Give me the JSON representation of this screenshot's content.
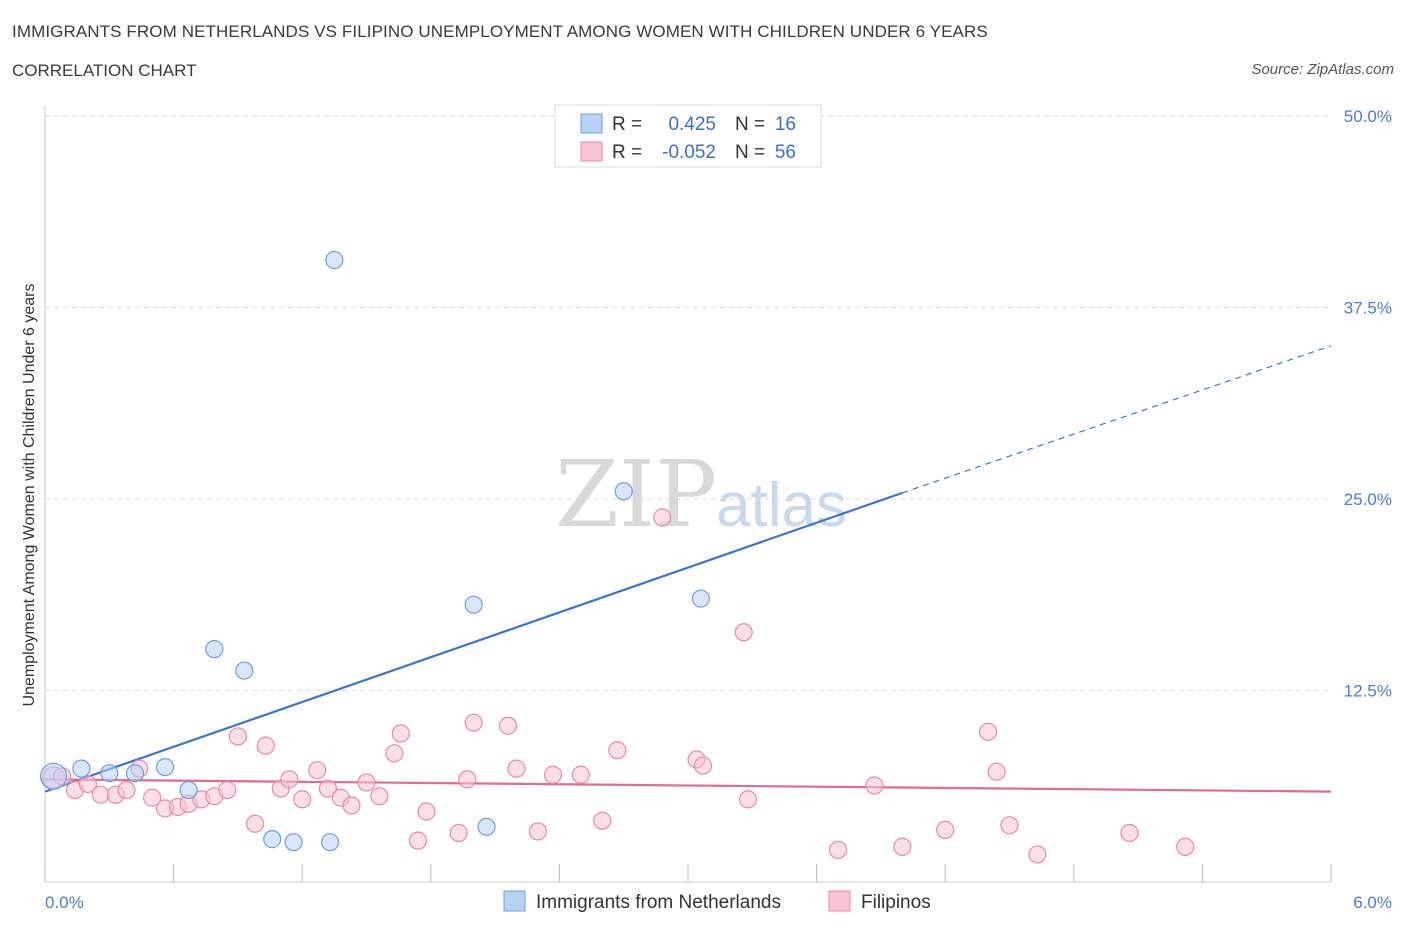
{
  "header": {
    "title": "IMMIGRANTS FROM NETHERLANDS VS FILIPINO UNEMPLOYMENT AMONG WOMEN WITH CHILDREN UNDER 6 YEARS",
    "subtitle": "CORRELATION CHART",
    "source": "Source: ZipAtlas.com"
  },
  "watermark": {
    "zip": "ZIP",
    "atlas": "atlas"
  },
  "legend": {
    "rows": [
      {
        "r_label": "R =",
        "r_value": "0.425",
        "n_label": "N =",
        "n_value": "16",
        "color": "#b8d2f5"
      },
      {
        "r_label": "R =",
        "r_value": "-0.052",
        "n_label": "N =",
        "n_value": "56",
        "color": "#f8c4d4"
      }
    ]
  },
  "bottom_legend": [
    {
      "label": "Immigrants from Netherlands",
      "color": "#b8d2f5",
      "stroke": "#6f9ee0"
    },
    {
      "label": "Filipinos",
      "color": "#f8c4d4",
      "stroke": "#e88aa8"
    }
  ],
  "chart_data": {
    "type": "scatter",
    "title": "IMMIGRANTS FROM NETHERLANDS VS FILIPINO UNEMPLOYMENT AMONG WOMEN WITH CHILDREN UNDER 6 YEARS",
    "xlabel": "",
    "ylabel": "Unemployment Among Women with Children Under 6 years",
    "xlim": [
      0,
      6
    ],
    "ylim": [
      0,
      50
    ],
    "x_tick_labels": [
      "0.0%",
      "6.0%"
    ],
    "y_ticks": [
      12.5,
      25.0,
      37.5,
      50.0
    ],
    "y_tick_labels": [
      "12.5%",
      "25.0%",
      "37.5%",
      "50.0%"
    ],
    "series": [
      {
        "name": "Immigrants from Netherlands",
        "color": "#6f9ee0",
        "fill": "#b8d2f5",
        "points": [
          [
            0.04,
            6.9
          ],
          [
            0.17,
            7.4
          ],
          [
            0.3,
            7.1
          ],
          [
            0.42,
            7.1
          ],
          [
            0.56,
            7.5
          ],
          [
            0.67,
            6.0
          ],
          [
            0.79,
            15.2
          ],
          [
            0.93,
            13.8
          ],
          [
            1.06,
            2.8
          ],
          [
            1.16,
            2.6
          ],
          [
            1.33,
            2.6
          ],
          [
            1.35,
            40.6
          ],
          [
            2.0,
            18.1
          ],
          [
            2.06,
            3.6
          ],
          [
            2.7,
            25.5
          ],
          [
            3.06,
            18.5
          ]
        ],
        "trend": {
          "x0": 0.0,
          "y0": 5.9,
          "x1": 4.0,
          "y1": 25.4,
          "dash_x1": 6.0,
          "dash_y1": 35.0
        }
      },
      {
        "name": "Filipinos",
        "color": "#e88aa8",
        "fill": "#f8c4d4",
        "points": [
          [
            0.04,
            6.8
          ],
          [
            0.08,
            6.9
          ],
          [
            0.14,
            6.0
          ],
          [
            0.2,
            6.4
          ],
          [
            0.26,
            5.7
          ],
          [
            0.33,
            5.7
          ],
          [
            0.38,
            6.0
          ],
          [
            0.44,
            7.4
          ],
          [
            0.5,
            5.5
          ],
          [
            0.56,
            4.8
          ],
          [
            0.62,
            4.9
          ],
          [
            0.67,
            5.1
          ],
          [
            0.73,
            5.4
          ],
          [
            0.79,
            5.6
          ],
          [
            0.85,
            6.0
          ],
          [
            0.9,
            9.5
          ],
          [
            0.98,
            3.8
          ],
          [
            1.03,
            8.9
          ],
          [
            1.1,
            6.1
          ],
          [
            1.14,
            6.7
          ],
          [
            1.2,
            5.4
          ],
          [
            1.27,
            7.3
          ],
          [
            1.32,
            6.1
          ],
          [
            1.38,
            5.5
          ],
          [
            1.43,
            5.0
          ],
          [
            1.5,
            6.5
          ],
          [
            1.56,
            5.6
          ],
          [
            1.63,
            8.4
          ],
          [
            1.66,
            9.7
          ],
          [
            1.74,
            2.7
          ],
          [
            1.78,
            4.6
          ],
          [
            1.93,
            3.2
          ],
          [
            1.97,
            6.7
          ],
          [
            2.0,
            10.4
          ],
          [
            2.16,
            10.2
          ],
          [
            2.2,
            7.4
          ],
          [
            2.3,
            3.3
          ],
          [
            2.37,
            7.0
          ],
          [
            2.5,
            7.0
          ],
          [
            2.6,
            4.0
          ],
          [
            2.67,
            8.6
          ],
          [
            2.88,
            23.8
          ],
          [
            3.04,
            8.0
          ],
          [
            3.07,
            7.6
          ],
          [
            3.26,
            16.3
          ],
          [
            3.28,
            5.4
          ],
          [
            3.7,
            2.1
          ],
          [
            3.87,
            6.3
          ],
          [
            4.0,
            2.3
          ],
          [
            4.2,
            3.4
          ],
          [
            4.4,
            9.8
          ],
          [
            4.44,
            7.2
          ],
          [
            4.5,
            3.7
          ],
          [
            4.63,
            1.8
          ],
          [
            5.06,
            3.2
          ],
          [
            5.32,
            2.3
          ]
        ],
        "trend": {
          "x0": 0.0,
          "y0": 6.7,
          "x1": 6.0,
          "y1": 5.9
        }
      }
    ]
  }
}
